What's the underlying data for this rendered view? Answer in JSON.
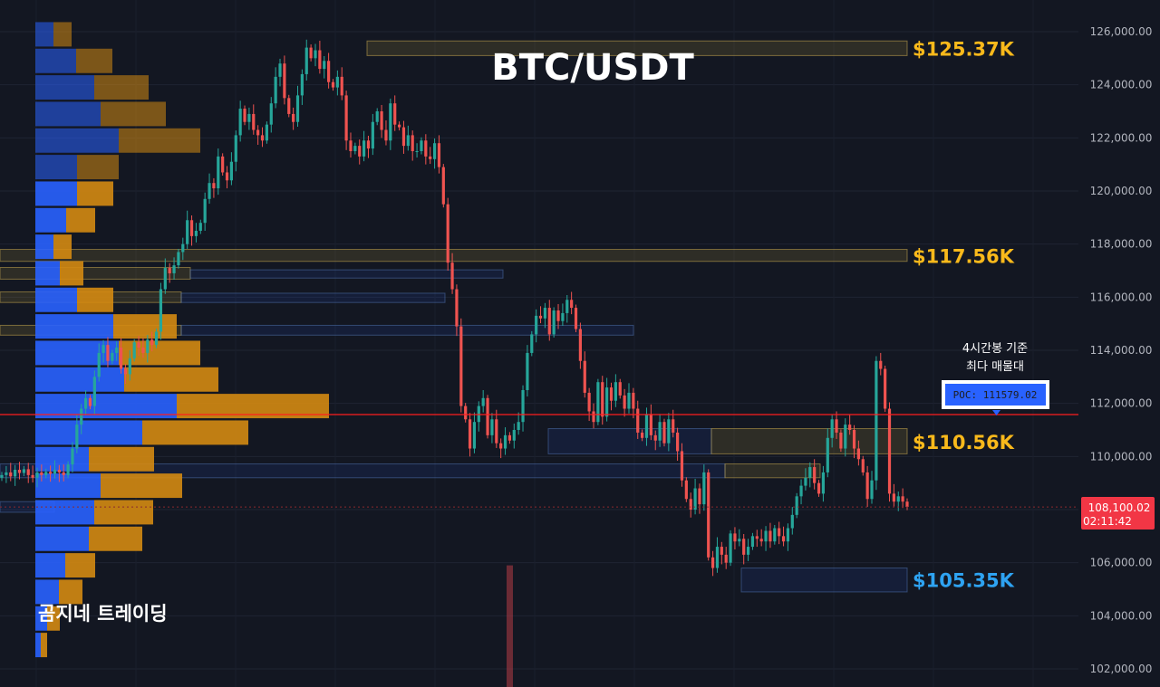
{
  "chart_data": {
    "type": "candlestick",
    "title": "BTC/USDT",
    "watermark": "곰지네 트레이딩",
    "y_axis": {
      "ylim": [
        101700,
        126600
      ],
      "ticks": [
        "102,000.00",
        "104,000.00",
        "106,000.00",
        "108,000.00",
        "110,000.00",
        "112,000.00",
        "114,000.00",
        "116,000.00",
        "118,000.00",
        "120,000.00",
        "122,000.00",
        "124,000.00",
        "126,000.00"
      ],
      "tick_values": [
        102000,
        104000,
        106000,
        108000,
        110000,
        112000,
        114000,
        116000,
        118000,
        120000,
        122000,
        124000,
        126000
      ]
    },
    "grid": true,
    "colors": {
      "up": "#26a69a",
      "down": "#ef5350",
      "background": "#131722",
      "poc_line": "#ff1e1e",
      "gold": "#f9b91b",
      "blue_label": "#2ea3f2",
      "vp_up": "#2962ff",
      "vp_down": "#d48a12"
    },
    "levels": [
      {
        "label": "$125.37K",
        "price": 125370,
        "color": "gold"
      },
      {
        "label": "$117.56K",
        "price": 117560,
        "color": "gold"
      },
      {
        "label": "$110.56K",
        "price": 110560,
        "color": "gold"
      },
      {
        "label": "$105.35K",
        "price": 105350,
        "color": "blue"
      }
    ],
    "poc": {
      "label": "POC: 111579.02",
      "price": 111579.02,
      "note_line1": "4시간봉 기준",
      "note_line2": "최다 매물대"
    },
    "last_price": {
      "value": "108,100.02",
      "countdown": "02:11:42",
      "price": 108100.02
    },
    "volume_profile": [
      {
        "price": 125900,
        "up": 20,
        "down": 20
      },
      {
        "price": 124900,
        "up": 45,
        "down": 40
      },
      {
        "price": 123900,
        "up": 65,
        "down": 60
      },
      {
        "price": 122900,
        "up": 72,
        "down": 72
      },
      {
        "price": 121900,
        "up": 92,
        "down": 90
      },
      {
        "price": 120900,
        "up": 46,
        "down": 46
      },
      {
        "price": 119900,
        "up": 46,
        "down": 40
      },
      {
        "price": 118900,
        "up": 34,
        "down": 32
      },
      {
        "price": 117900,
        "up": 20,
        "down": 20
      },
      {
        "price": 116900,
        "up": 27,
        "down": 26
      },
      {
        "price": 115900,
        "up": 46,
        "down": 40
      },
      {
        "price": 114900,
        "up": 86,
        "down": 70
      },
      {
        "price": 113900,
        "up": 92,
        "down": 90
      },
      {
        "price": 112900,
        "up": 98,
        "down": 104
      },
      {
        "price": 111900,
        "up": 156,
        "down": 168
      },
      {
        "price": 110900,
        "up": 118,
        "down": 117
      },
      {
        "price": 109900,
        "up": 59,
        "down": 72
      },
      {
        "price": 108900,
        "up": 72,
        "down": 90
      },
      {
        "price": 107900,
        "up": 65,
        "down": 65
      },
      {
        "price": 106900,
        "up": 59,
        "down": 59
      },
      {
        "price": 105900,
        "up": 33,
        "down": 33
      },
      {
        "price": 104900,
        "up": 26,
        "down": 26
      },
      {
        "price": 103900,
        "up": 13,
        "down": 14
      },
      {
        "price": 102900,
        "up": 6,
        "down": 7
      }
    ],
    "zones": [
      {
        "from": 125100,
        "to": 125650,
        "start": 405,
        "end": 1001,
        "style": "gold"
      },
      {
        "from": 117350,
        "to": 117800,
        "start": 0,
        "end": 1001,
        "style": "gold"
      },
      {
        "from": 116680,
        "to": 117120,
        "start": 0,
        "end": 210,
        "style": "gold"
      },
      {
        "from": 116720,
        "to": 117030,
        "start": 210,
        "end": 555,
        "style": "blue"
      },
      {
        "from": 115800,
        "to": 116200,
        "start": 0,
        "end": 200,
        "style": "gold"
      },
      {
        "from": 115800,
        "to": 116150,
        "start": 200,
        "end": 491,
        "style": "blue"
      },
      {
        "from": 114570,
        "to": 114940,
        "start": 0,
        "end": 200,
        "style": "gold"
      },
      {
        "from": 114570,
        "to": 114940,
        "start": 200,
        "end": 699,
        "style": "blue"
      },
      {
        "from": 110100,
        "to": 111050,
        "start": 605,
        "end": 785,
        "style": "blue"
      },
      {
        "from": 110100,
        "to": 111050,
        "start": 785,
        "end": 1001,
        "style": "gold"
      },
      {
        "from": 109200,
        "to": 109720,
        "start": 0,
        "end": 800,
        "style": "blue"
      },
      {
        "from": 109200,
        "to": 109720,
        "start": 800,
        "end": 905,
        "style": "gold"
      },
      {
        "from": 107900,
        "to": 108300,
        "start": 0,
        "end": 60,
        "style": "blue"
      },
      {
        "from": 104900,
        "to": 105800,
        "start": 818,
        "end": 1001,
        "style": "blue"
      }
    ],
    "candle_closes": [
      109300,
      109400,
      109250,
      109500,
      109380,
      109520,
      109300,
      109200,
      109400,
      109300,
      109420,
      109350,
      109500,
      109400,
      109300,
      109700,
      110300,
      111200,
      111800,
      112200,
      111900,
      113000,
      113900,
      114200,
      113600,
      113900,
      114100,
      113300,
      113100,
      113700,
      114300,
      114100,
      113900,
      114400,
      114200,
      114700,
      116300,
      117100,
      116900,
      117200,
      117700,
      118000,
      118900,
      118300,
      118500,
      118800,
      119700,
      120300,
      120100,
      121300,
      120700,
      120400,
      121100,
      122100,
      123100,
      122600,
      122900,
      122300,
      122100,
      121900,
      122500,
      123300,
      124300,
      124800,
      123500,
      122900,
      122600,
      123600,
      124400,
      125400,
      125000,
      125300,
      124600,
      124900,
      124100,
      123900,
      124300,
      123600,
      121900,
      121500,
      121700,
      121300,
      121900,
      121600,
      122600,
      123000,
      122300,
      121900,
      123300,
      122500,
      122400,
      121700,
      122100,
      121500,
      121500,
      121900,
      121300,
      121200,
      121800,
      120900,
      119500,
      117300,
      116300,
      114900,
      111900,
      111400,
      110300,
      111300,
      111900,
      112200,
      110800,
      111400,
      110500,
      110300,
      110800,
      110600,
      111000,
      111300,
      112500,
      113900,
      114600,
      115300,
      115200,
      115600,
      114600,
      115500,
      115100,
      115400,
      115900,
      115600,
      114800,
      113600,
      112400,
      111700,
      111300,
      112800,
      111500,
      112600,
      112100,
      112800,
      112300,
      111800,
      112400,
      111800,
      110900,
      110700,
      111600,
      110800,
      110600,
      111300,
      110500,
      111400,
      110900,
      110200,
      109100,
      108400,
      108000,
      108800,
      108200,
      109400,
      106200,
      105800,
      106600,
      106300,
      106000,
      107100,
      106800,
      106900,
      106300,
      106600,
      107000,
      106900,
      106800,
      107200,
      106800,
      107300,
      107000,
      106800,
      107300,
      107800,
      108500,
      108900,
      109200,
      109600,
      109000,
      108600,
      109400,
      110700,
      111400,
      110900,
      110300,
      111200,
      111000,
      110300,
      109900,
      109400,
      108400,
      109100,
      113600,
      113300,
      111800,
      108600,
      108300,
      108500,
      108300,
      108100
    ]
  }
}
